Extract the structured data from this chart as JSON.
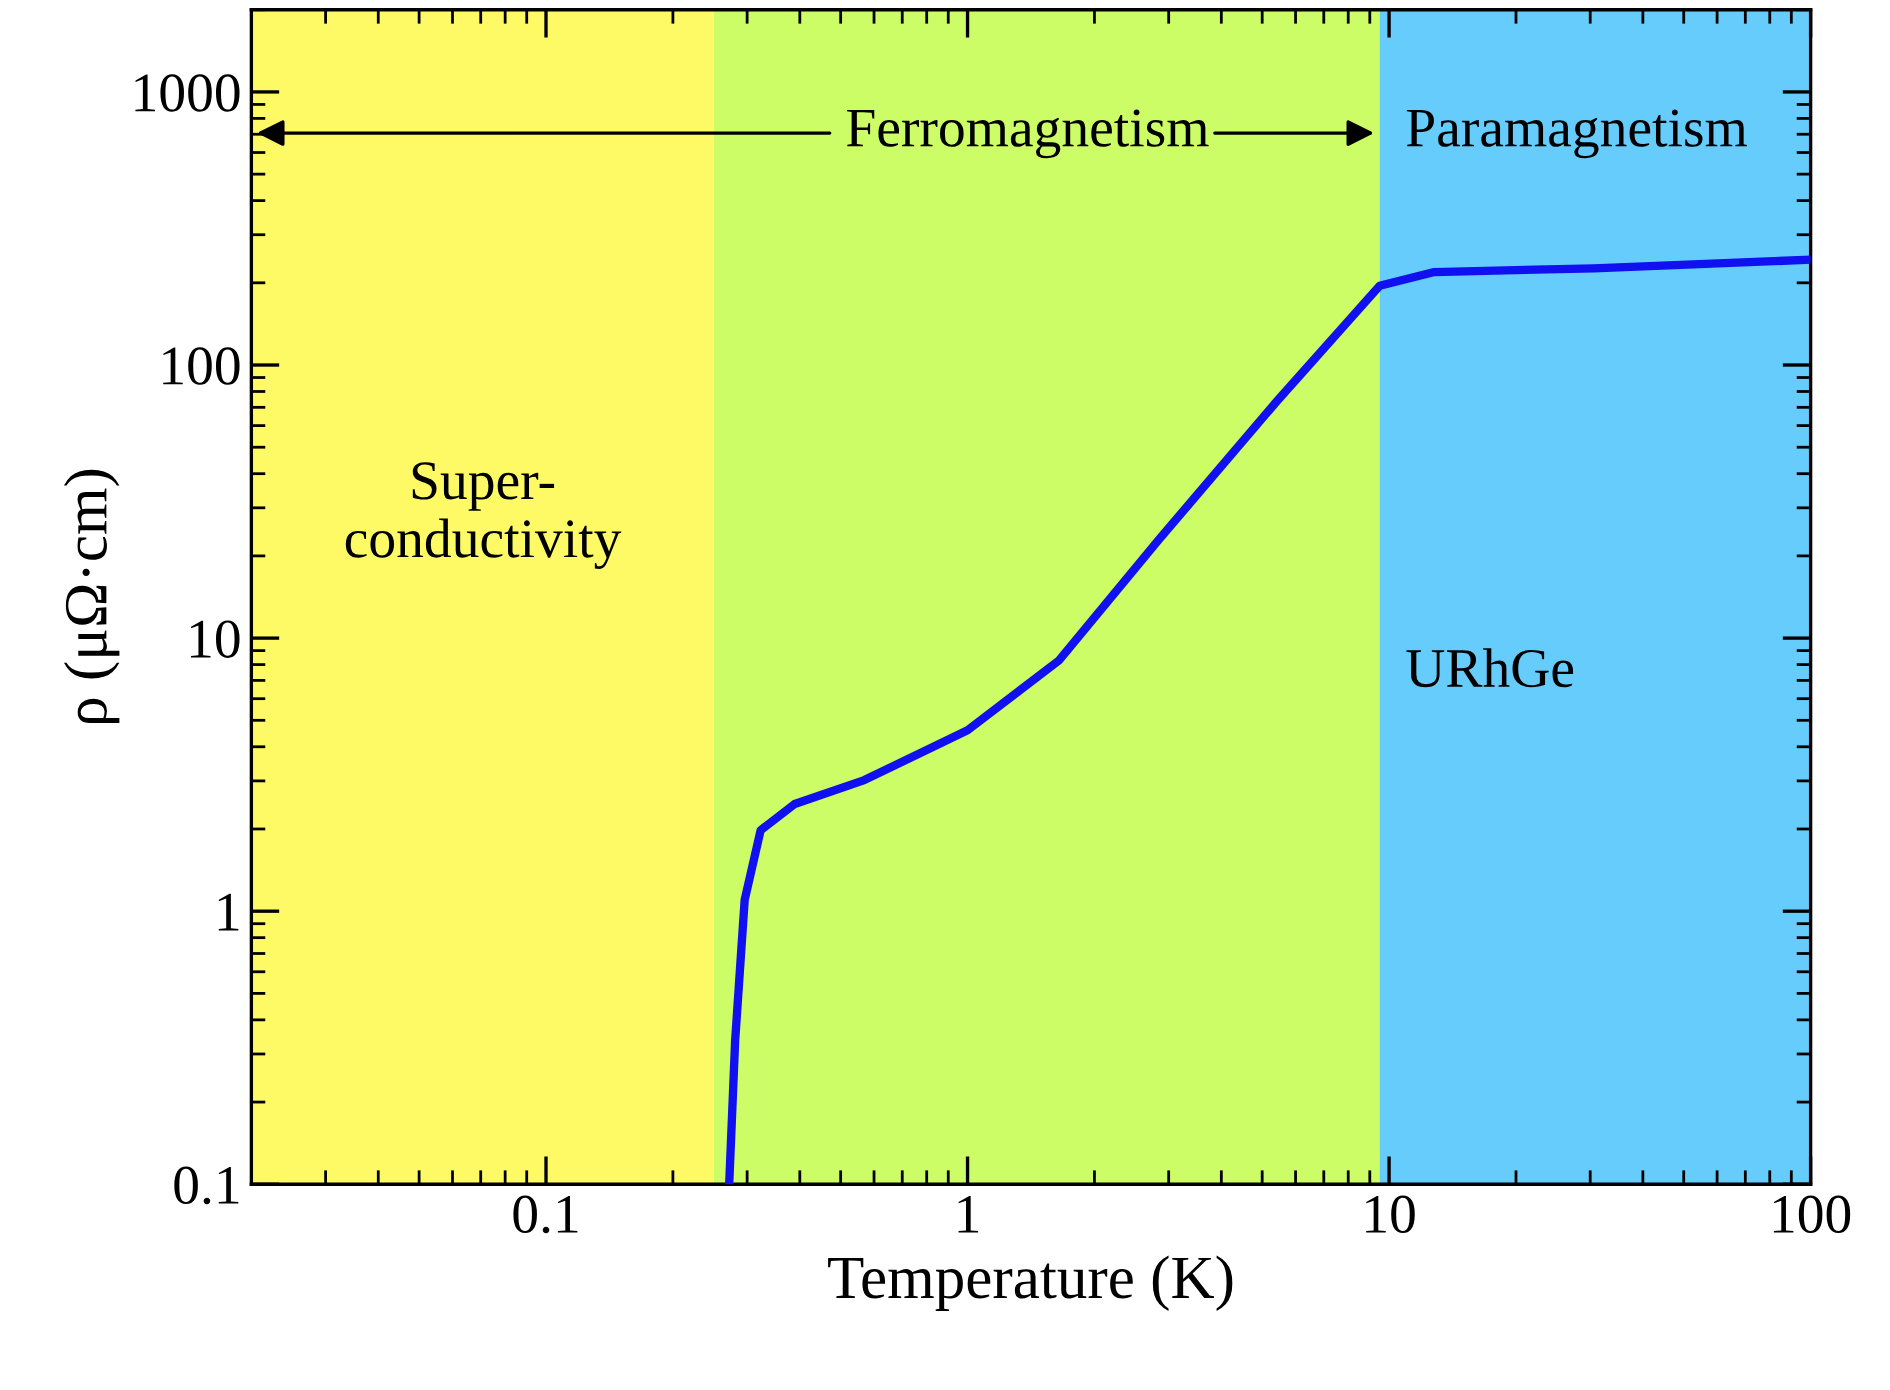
{
  "chart_data": {
    "type": "line",
    "xlabel": "Temperature (K)",
    "ylabel": "ρ (μΩ·cm)",
    "log": "xy",
    "xlim": [
      0.02,
      100
    ],
    "ylim": [
      0.1,
      2000
    ],
    "xticks": [
      0.1,
      1,
      10,
      100
    ],
    "yticks": [
      0.1,
      1,
      10,
      100,
      1000
    ],
    "grid": false,
    "legend": false,
    "bands": [
      {
        "axis": "x",
        "from": 0.02,
        "to": 0.25,
        "color": "#fdfa66",
        "label": "Super-\nconductivity"
      },
      {
        "axis": "x",
        "from": 0.25,
        "to": 9.5,
        "color": "#ccfc66",
        "label": "Ferromagnetism"
      },
      {
        "axis": "x",
        "from": 9.5,
        "to": 100,
        "color": "#66ccfc",
        "label": "Paramagnetism"
      }
    ],
    "annotations": [
      "URhGe"
    ],
    "series": [
      {
        "color": "#1010f0",
        "x": [
          0.272,
          0.281,
          0.296,
          0.323,
          0.389,
          0.569,
          1,
          1.65,
          2.84,
          5.45,
          9.5,
          12.8,
          30.6,
          100
        ],
        "values": [
          0.1,
          0.336,
          1.1,
          1.98,
          2.47,
          3.02,
          4.6,
          8.3,
          22.9,
          74.5,
          195,
          219,
          226,
          243
        ]
      }
    ]
  }
}
